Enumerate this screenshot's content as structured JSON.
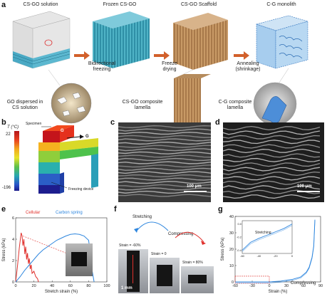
{
  "panel_a": {
    "label": "a",
    "stage_titles": [
      "CS-GO solution",
      "Frozen CS-GO",
      "CS-GO Scaffold",
      "C-G monolith"
    ],
    "arrow_labels": [
      "Bidirectional freezing",
      "Freeze drying",
      "Annealing (shrinkage)"
    ],
    "detail_labels": [
      "GO dispersed in CS solution",
      "CS-GO composite lamella",
      "C-G composite lamella"
    ]
  },
  "panel_b": {
    "label": "b",
    "scale_title": "T (°C)",
    "scale_ticks": [
      "22",
      "-196"
    ],
    "specimen_label": "Specimen",
    "gradient_labels": [
      "G",
      "G"
    ],
    "device_label": "Freezing device"
  },
  "panel_c": {
    "label": "c",
    "scalebar": "100 μm"
  },
  "panel_d": {
    "label": "d",
    "scalebar": "100 μm"
  },
  "panel_e": {
    "label": "e",
    "legend": [
      "Cellular",
      "Carbon spring"
    ],
    "colors": {
      "cellular": "#e0302c",
      "carbon": "#2e86de"
    },
    "chart_data": {
      "type": "line",
      "xlabel": "Stretch strain (%)",
      "ylabel": "Stress (kPa)",
      "xlim": [
        0,
        100
      ],
      "ylim": [
        0,
        6
      ],
      "xticks": [
        "0",
        "20",
        "40",
        "60",
        "80",
        "100"
      ],
      "yticks": [
        "0",
        "2",
        "4",
        "6"
      ],
      "series": [
        {
          "name": "Cellular",
          "x": [
            0,
            2,
            4,
            6,
            7,
            8,
            9,
            10,
            11,
            12,
            13,
            14,
            15,
            16,
            17,
            18,
            20,
            22,
            24,
            25
          ],
          "y": [
            0,
            1.5,
            3.2,
            4.6,
            4.3,
            3.4,
            4.0,
            2.6,
            3.3,
            2.1,
            2.7,
            1.7,
            2.2,
            1.2,
            1.6,
            0.8,
            1.0,
            0.5,
            0.3,
            0
          ]
        },
        {
          "name": "Carbon spring",
          "x": [
            0,
            5,
            10,
            15,
            20,
            25,
            30,
            35,
            40,
            45,
            50,
            55,
            60,
            65,
            70,
            75,
            80,
            82,
            84,
            86
          ],
          "y": [
            0,
            0.5,
            1.1,
            1.6,
            2.1,
            2.6,
            3.0,
            3.3,
            3.6,
            3.9,
            4.1,
            4.3,
            4.45,
            4.5,
            4.45,
            4.3,
            3.9,
            2.6,
            1.0,
            0
          ]
        }
      ]
    }
  },
  "panel_f": {
    "label": "f",
    "mode_labels": [
      "Stretching",
      "Compressing"
    ],
    "strain_labels": [
      "Strain = -60%",
      "Strain = 0",
      "Strain = 80%"
    ],
    "scalebar": "1 mm"
  },
  "panel_g": {
    "label": "g",
    "inset_label": "Stretching",
    "main_label": "Compressing",
    "colors": {
      "curve": "#2e86de",
      "box": "#e0302c"
    },
    "chart_data": {
      "type": "line",
      "xlabel": "Strain (%)",
      "ylabel": "Stress (kPa)",
      "xlim": [
        -60,
        90
      ],
      "ylim": [
        0,
        40
      ],
      "xticks": [
        "-60",
        "-30",
        "0",
        "30",
        "60",
        "90"
      ],
      "yticks": [
        "0",
        "10",
        "20",
        "30",
        "40"
      ],
      "series": [
        {
          "name": "Compressing",
          "x": [
            -60,
            -40,
            -20,
            0,
            20,
            40,
            55,
            65,
            70,
            75,
            78,
            80
          ],
          "y": [
            -0.4,
            -0.3,
            -0.2,
            0,
            0.5,
            1.5,
            3.0,
            6.0,
            9.0,
            15.0,
            22.0,
            38.0
          ]
        }
      ],
      "inset": {
        "xticks": [
          "-60",
          "-40",
          "-20",
          "0"
        ],
        "yticks": [
          "-0.4",
          "-0.2",
          "0.0"
        ],
        "x": [
          -60,
          -50,
          -40,
          -30,
          -20,
          -10,
          0
        ],
        "y": [
          -0.4,
          -0.28,
          -0.22,
          -0.17,
          -0.12,
          -0.07,
          0
        ]
      }
    }
  }
}
